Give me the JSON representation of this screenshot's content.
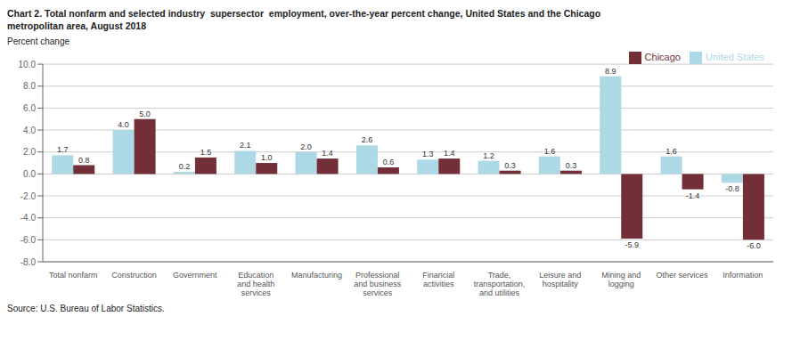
{
  "chart_data": {
    "type": "bar",
    "title": "Chart 2. Total nonfarm and selected industry  supersector  employment, over-the-year percent change, United States and the Chicago\nmetropolitan area, August 2018",
    "ylabel": "Percent change",
    "source": "Source: U.S. Bureau of Labor Statistics.",
    "categories": [
      "Total nonfarm",
      "Construction",
      "Government",
      "Education\nand health\nservices",
      "Manufacturing",
      "Professional\nand business\nservices",
      "Financial\nactivities",
      "Trade,\ntransportation,\nand utilities",
      "Leisure and\nhospitality",
      "Mining and\nlogging",
      "Other services",
      "Information"
    ],
    "series": [
      {
        "name": "United States",
        "color": "#ADD8E6",
        "values": [
          1.7,
          4.0,
          0.2,
          2.1,
          2.0,
          2.6,
          1.3,
          1.2,
          1.6,
          8.9,
          1.6,
          -0.8
        ],
        "value_labels": [
          "1.7",
          "4.0",
          "0.2",
          "2.1",
          "2.0",
          "2.6",
          "1.3",
          "1.2",
          "1.6",
          "8.9",
          "1.6",
          "-0.8"
        ]
      },
      {
        "name": "Chicago",
        "color": "#722F37",
        "values": [
          0.8,
          5.0,
          1.5,
          1.0,
          1.4,
          0.6,
          1.4,
          0.3,
          0.3,
          -5.9,
          -1.4,
          -6.0
        ],
        "value_labels": [
          "0.8",
          "5.0",
          "1.5",
          "1.0",
          "1.4",
          "0.6",
          "1.4",
          "0.3",
          "0.3",
          "-5.9",
          "-1.4",
          "-6.0"
        ]
      }
    ],
    "ylim": [
      -8.0,
      10.0
    ],
    "yticks": [
      {
        "value": -8.0,
        "label": "-8.0"
      },
      {
        "value": -6.0,
        "label": "-6.0"
      },
      {
        "value": -4.0,
        "label": "-4.0"
      },
      {
        "value": -2.0,
        "label": "-2.0"
      },
      {
        "value": 0.0,
        "label": "0.0"
      },
      {
        "value": 2.0,
        "label": "2.0"
      },
      {
        "value": 4.0,
        "label": "4.0"
      },
      {
        "value": 6.0,
        "label": "6.0"
      },
      {
        "value": 8.0,
        "label": "8.0"
      },
      {
        "value": 10.0,
        "label": "10.0"
      }
    ],
    "grid": true,
    "legend": "upper right",
    "data_labels": true
  }
}
